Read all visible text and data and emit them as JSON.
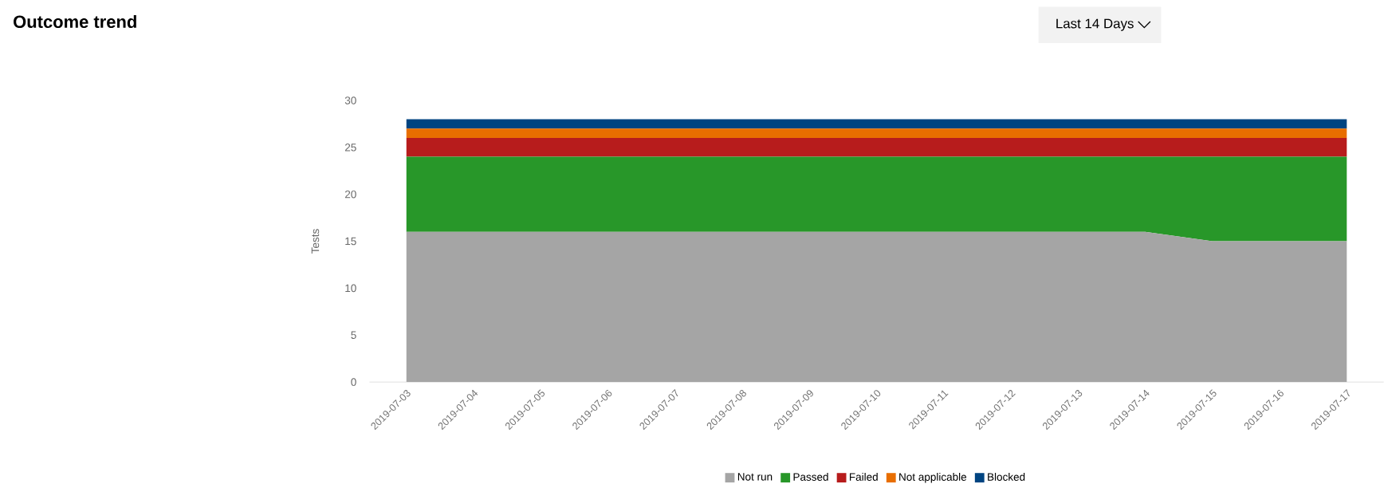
{
  "chart_data": {
    "type": "area",
    "title": "Outcome trend",
    "ylabel": "Tests",
    "stacked": true,
    "legend": "bottom",
    "categories": [
      "2019-07-03",
      "2019-07-04",
      "2019-07-05",
      "2019-07-06",
      "2019-07-07",
      "2019-07-08",
      "2019-07-09",
      "2019-07-10",
      "2019-07-11",
      "2019-07-12",
      "2019-07-13",
      "2019-07-14",
      "2019-07-15",
      "2019-07-16",
      "2019-07-17"
    ],
    "series": [
      {
        "name": "Not run",
        "color": "#a5a5a5",
        "values": [
          16,
          16,
          16,
          16,
          16,
          16,
          16,
          16,
          16,
          16,
          16,
          16,
          15,
          15,
          15
        ]
      },
      {
        "name": "Passed",
        "color": "#289729",
        "values": [
          8,
          8,
          8,
          8,
          8,
          8,
          8,
          8,
          8,
          8,
          8,
          8,
          9,
          9,
          9
        ]
      },
      {
        "name": "Failed",
        "color": "#b71c1c",
        "values": [
          2,
          2,
          2,
          2,
          2,
          2,
          2,
          2,
          2,
          2,
          2,
          2,
          2,
          2,
          2
        ]
      },
      {
        "name": "Not applicable",
        "color": "#e86e00",
        "values": [
          1,
          1,
          1,
          1,
          1,
          1,
          1,
          1,
          1,
          1,
          1,
          1,
          1,
          1,
          1
        ]
      },
      {
        "name": "Blocked",
        "color": "#004481",
        "values": [
          1,
          1,
          1,
          1,
          1,
          1,
          1,
          1,
          1,
          1,
          1,
          1,
          1,
          1,
          1
        ]
      }
    ],
    "ylim": [
      0,
      30
    ],
    "yticks": [
      0,
      5,
      10,
      15,
      20,
      25,
      30
    ],
    "annotations": [
      "Last 14 Days"
    ]
  }
}
